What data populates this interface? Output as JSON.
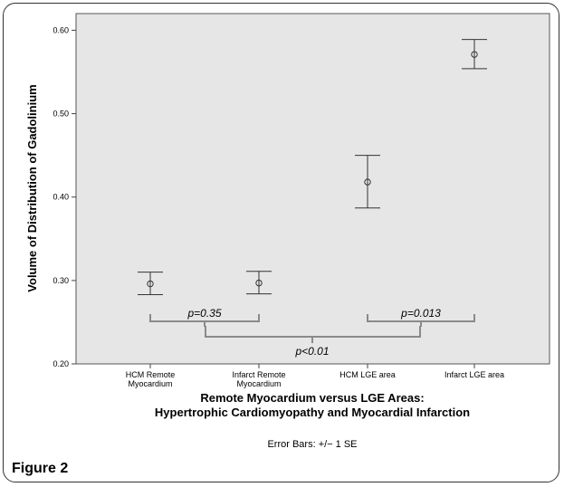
{
  "figure_label": "Figure 2",
  "chart_data": {
    "type": "scatter",
    "categories": [
      "HCM Remote\nMyocardium",
      "Infarct Remote\nMyocardium",
      "HCM LGE area",
      "Infarct LGE area"
    ],
    "series": [
      {
        "values": [
          0.296,
          0.297,
          0.418,
          0.571
        ],
        "error_low": [
          0.283,
          0.284,
          0.387,
          0.554
        ],
        "error_high": [
          0.31,
          0.311,
          0.45,
          0.589
        ]
      }
    ],
    "ylabel": "Volume of Distribution of Gadolinium",
    "xlabel_line1": "Remote Myocardium versus LGE Areas:",
    "xlabel_line2": "Hypertrophic Cardiomyopathy and Myocardial Infarction",
    "footnote": "Error Bars: +/− 1 SE",
    "ylim": [
      0.2,
      0.62
    ],
    "yticks": [
      "0.20",
      "0.30",
      "0.40",
      "0.50",
      "0.60"
    ],
    "grid": false,
    "plot_background": "#e6e6e6",
    "annotations": [
      {
        "text": "p=0.35",
        "between": [
          0,
          1
        ]
      },
      {
        "text": "p=0.013",
        "between": [
          2,
          3
        ]
      },
      {
        "text": "p<0.01",
        "between": [
          "remote",
          "lge"
        ]
      }
    ]
  }
}
